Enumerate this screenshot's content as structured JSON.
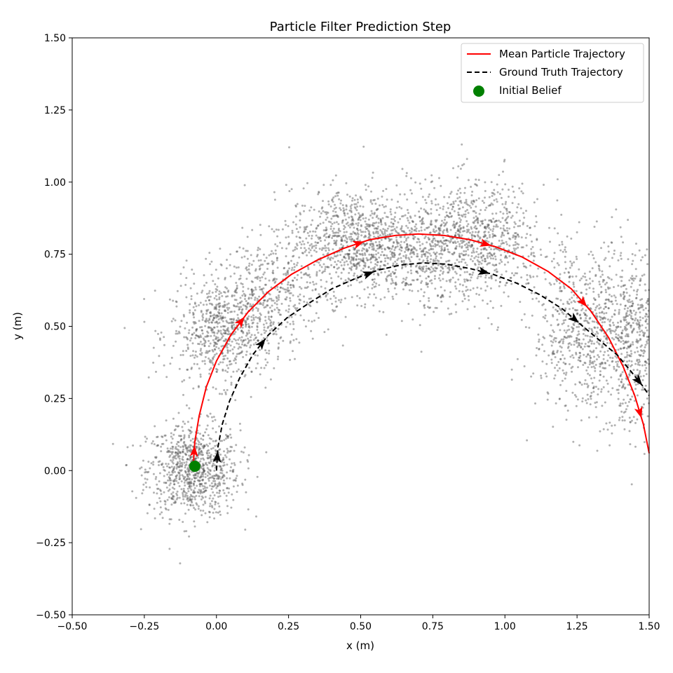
{
  "chart_data": {
    "type": "scatter",
    "title": "Particle Filter Prediction Step",
    "xlabel": "x (m)",
    "ylabel": "y (m)",
    "xlim": [
      -0.5,
      1.5
    ],
    "ylim": [
      -0.5,
      1.5
    ],
    "grid": false,
    "legend_position": "top-right",
    "xticks": [
      -0.5,
      -0.25,
      0.0,
      0.25,
      0.5,
      0.75,
      1.0,
      1.25,
      1.5
    ],
    "yticks": [
      -0.5,
      -0.25,
      0.0,
      0.25,
      0.5,
      0.75,
      1.0,
      1.25,
      1.5
    ],
    "xtick_labels": [
      "−0.50",
      "−0.25",
      "0.00",
      "0.25",
      "0.50",
      "0.75",
      "1.00",
      "1.25",
      "1.50"
    ],
    "ytick_labels": [
      "−0.50",
      "−0.25",
      "0.00",
      "0.25",
      "0.50",
      "0.75",
      "1.00",
      "1.25",
      "1.50"
    ],
    "series": [
      {
        "name": "Mean Particle Trajectory",
        "style": "solid",
        "color": "#ff0000",
        "x": [
          -0.08,
          -0.075,
          -0.06,
          -0.035,
          0.0,
          0.05,
          0.11,
          0.18,
          0.26,
          0.35,
          0.44,
          0.53,
          0.62,
          0.7,
          0.79,
          0.88,
          0.97,
          1.06,
          1.15,
          1.23,
          1.3,
          1.36,
          1.41,
          1.45,
          1.48,
          1.5
        ],
        "y": [
          0.02,
          0.1,
          0.19,
          0.29,
          0.38,
          0.47,
          0.55,
          0.62,
          0.68,
          0.73,
          0.77,
          0.8,
          0.815,
          0.82,
          0.815,
          0.8,
          0.775,
          0.74,
          0.69,
          0.63,
          0.55,
          0.46,
          0.36,
          0.26,
          0.16,
          0.06
        ]
      },
      {
        "name": "Ground Truth Trajectory",
        "style": "dashed",
        "color": "#000000",
        "x": [
          0.0,
          0.005,
          0.02,
          0.045,
          0.08,
          0.125,
          0.18,
          0.245,
          0.32,
          0.4,
          0.48,
          0.56,
          0.64,
          0.72,
          0.8,
          0.88,
          0.96,
          1.04,
          1.12,
          1.2,
          1.27,
          1.33,
          1.39,
          1.44,
          1.48,
          1.5
        ],
        "y": [
          0.0,
          0.08,
          0.16,
          0.24,
          0.32,
          0.4,
          0.47,
          0.53,
          0.58,
          0.63,
          0.665,
          0.695,
          0.713,
          0.72,
          0.715,
          0.7,
          0.68,
          0.65,
          0.61,
          0.56,
          0.5,
          0.45,
          0.4,
          0.34,
          0.29,
          0.26
        ]
      }
    ],
    "initial_belief": {
      "name": "Initial Belief",
      "color": "#008000",
      "x": -0.075,
      "y": 0.015
    },
    "particles": {
      "color": "#555555",
      "approx_count": 6000,
      "clusters": [
        {
          "cx": -0.08,
          "cy": 0.0,
          "sx": 0.08,
          "sy": 0.08,
          "n": 900
        },
        {
          "cx": 0.02,
          "cy": 0.48,
          "sx": 0.09,
          "sy": 0.09,
          "n": 700
        },
        {
          "cx": 0.47,
          "cy": 0.8,
          "sx": 0.11,
          "sy": 0.09,
          "n": 800
        },
        {
          "cx": 0.9,
          "cy": 0.8,
          "sx": 0.12,
          "sy": 0.1,
          "n": 800
        },
        {
          "cx": 1.3,
          "cy": 0.48,
          "sx": 0.1,
          "sy": 0.14,
          "n": 800
        },
        {
          "cx": 1.46,
          "cy": 0.45,
          "sx": 0.06,
          "sy": 0.15,
          "n": 400
        },
        {
          "cx": 0.7,
          "cy": 0.75,
          "sx": 0.14,
          "sy": 0.1,
          "n": 500
        },
        {
          "cx": 0.2,
          "cy": 0.62,
          "sx": 0.1,
          "sy": 0.09,
          "n": 400
        }
      ]
    }
  },
  "legend": {
    "mean_label": "Mean Particle Trajectory",
    "truth_label": "Ground Truth Trajectory",
    "belief_label": "Initial Belief"
  }
}
